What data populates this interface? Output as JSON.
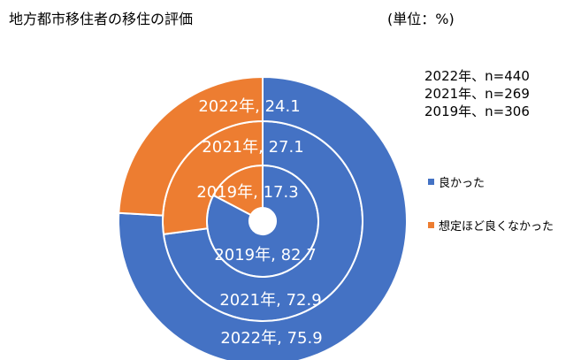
{
  "header": {
    "title": "地方都市移住者の移住の評価",
    "unit": "(単位：%)"
  },
  "notes": [
    "2022年、n=440",
    "2021年、n=269",
    "2019年、n=306"
  ],
  "colors": {
    "good": "#4472C4",
    "bad": "#ED7D31"
  },
  "chart_data": {
    "type": "pie",
    "subtype": "doughnut",
    "series": [
      {
        "name": "2019年",
        "values": [
          82.7,
          17.3
        ]
      },
      {
        "name": "2021年",
        "values": [
          72.9,
          27.1
        ]
      },
      {
        "name": "2022年",
        "values": [
          75.9,
          24.1
        ]
      }
    ],
    "categories": [
      "良かった",
      "想定ほど良くなかった"
    ],
    "labels": [
      [
        "2019年, 82.7",
        "2019年, 17.3"
      ],
      [
        "2021年, 72.9",
        "2021年, 27.1"
      ],
      [
        "2022年, 75.9",
        "2022年, 24.1"
      ]
    ],
    "legend": {
      "position": "right",
      "items": [
        "良かった",
        "想定ほど良くなかった"
      ]
    },
    "title": "地方都市移住者の移住の評価"
  }
}
